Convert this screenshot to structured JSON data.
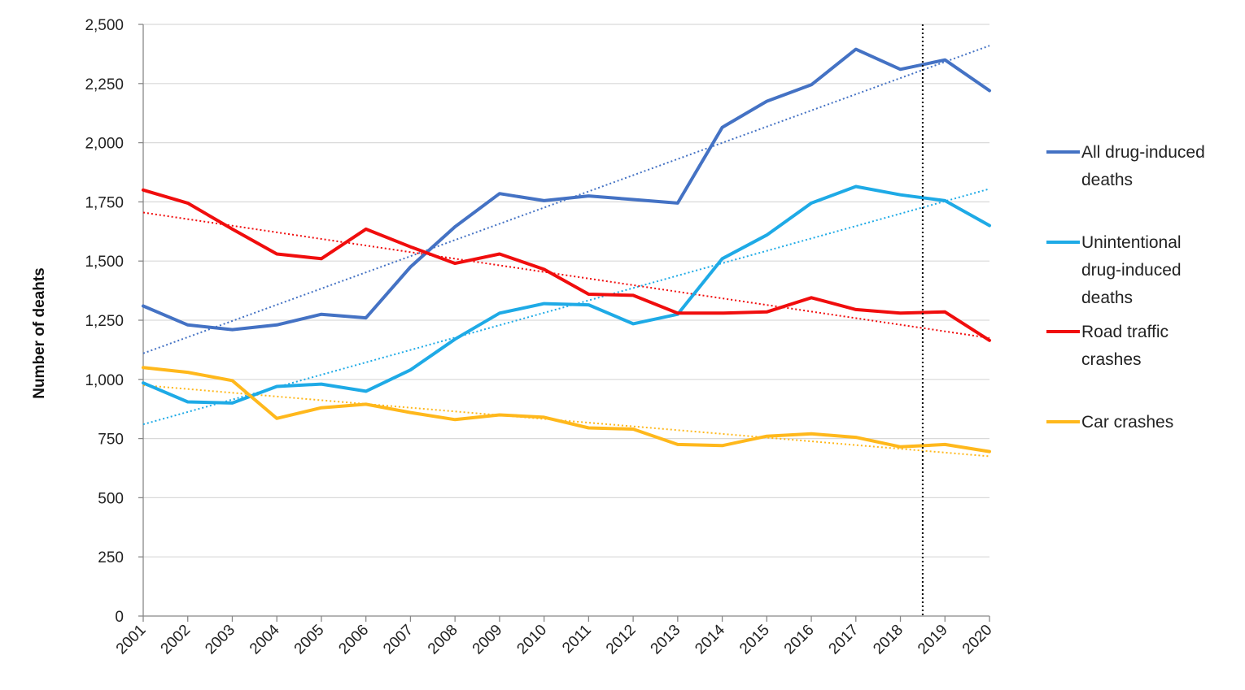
{
  "chart_data": {
    "type": "line",
    "title": "",
    "xlabel": "",
    "ylabel": "Number of deahts",
    "x": [
      "2001",
      "2002",
      "2003",
      "2004",
      "2005",
      "2006",
      "2007",
      "2008",
      "2009",
      "2010",
      "2011",
      "2012",
      "2013",
      "2014",
      "2015",
      "2016",
      "2017",
      "2018",
      "2019",
      "2020"
    ],
    "ylim": [
      0,
      2500
    ],
    "yticks": [
      0,
      250,
      500,
      750,
      1000,
      1250,
      1500,
      1750,
      2000,
      2250,
      2500
    ],
    "ytick_labels": [
      "0",
      "250",
      "500",
      "750",
      "1,000",
      "1,250",
      "1,500",
      "1,750",
      "2,000",
      "2,250",
      "2,500"
    ],
    "grid": true,
    "legend_position": "right",
    "reference_line_x": 2018.5,
    "series": [
      {
        "key": "all",
        "legend_lines": [
          "All drug-induced",
          "deaths"
        ],
        "color": "#4472C4",
        "values": [
          1310,
          1230,
          1210,
          1230,
          1275,
          1260,
          1475,
          1645,
          1785,
          1755,
          1775,
          1760,
          1745,
          2065,
          2175,
          2245,
          2395,
          2310,
          2350,
          2220
        ],
        "trend": [
          1110,
          2410
        ]
      },
      {
        "key": "unintentional",
        "legend_lines": [
          "Unintentional",
          "drug-induced",
          "deaths"
        ],
        "color": "#1EAAE6",
        "values": [
          985,
          905,
          900,
          970,
          980,
          950,
          1040,
          1170,
          1280,
          1320,
          1315,
          1235,
          1275,
          1510,
          1610,
          1745,
          1815,
          1780,
          1755,
          1650
        ],
        "trend": [
          810,
          1805
        ]
      },
      {
        "key": "road",
        "legend_lines": [
          "Road traffic",
          "crashes"
        ],
        "color": "#F00D0D",
        "values": [
          1800,
          1745,
          1635,
          1530,
          1510,
          1635,
          1560,
          1490,
          1530,
          1465,
          1360,
          1355,
          1280,
          1280,
          1285,
          1345,
          1295,
          1280,
          1285,
          1165
        ],
        "trend": [
          1705,
          1175
        ]
      },
      {
        "key": "car",
        "legend_lines": [
          "Car crashes"
        ],
        "color": "#FFB81C",
        "values": [
          1050,
          1030,
          995,
          835,
          880,
          895,
          860,
          830,
          850,
          840,
          795,
          790,
          725,
          720,
          760,
          770,
          755,
          715,
          725,
          695
        ],
        "trend": [
          975,
          675
        ]
      }
    ]
  }
}
